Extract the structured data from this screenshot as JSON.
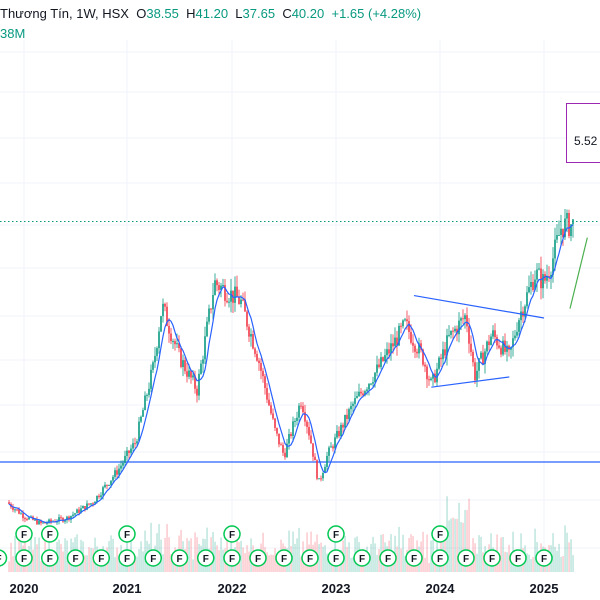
{
  "legend": {
    "symbol": "Thương Tín, 1W, HSX",
    "o_label": "O",
    "o_value": "38.55",
    "h_label": "H",
    "h_value": "41.20",
    "l_label": "L",
    "l_value": "37.65",
    "c_label": "C",
    "c_value": "40.20",
    "change": "+1.65 (+4.28%)",
    "volume_fragment": "38M"
  },
  "colors": {
    "up": "#089981",
    "down": "#f23645",
    "ma": "#2962ff",
    "trendline": "#2962ff",
    "support": "#2962ff",
    "projection": "#4caf50",
    "current_price_line": "#089981",
    "measure_box": "#9c27b0",
    "event_marker": "#00c853"
  },
  "measure_label": "5.52",
  "chart_data": {
    "type": "candlestick",
    "interval": "1W",
    "title": "Thương Tín, 1W, HSX",
    "xlabel": "",
    "ylabel": "",
    "x_tick_labels": [
      "2020",
      "2021",
      "2022",
      "2023",
      "2024",
      "2025"
    ],
    "last_bar": {
      "open": 38.55,
      "high": 41.2,
      "low": 37.65,
      "close": 40.2,
      "change": 1.65,
      "change_pct": 4.28
    },
    "ylim": [
      8,
      50
    ],
    "support_level": 14.8,
    "current_price": 40.2,
    "anchors": [
      [
        "2019-11",
        10.5
      ],
      [
        "2020-01",
        9.0
      ],
      [
        "2020-03",
        8.2
      ],
      [
        "2020-06",
        8.8
      ],
      [
        "2020-09",
        10.5
      ],
      [
        "2020-12",
        14.0
      ],
      [
        "2021-02",
        17.0
      ],
      [
        "2021-04",
        25.0
      ],
      [
        "2021-05",
        31.5
      ],
      [
        "2021-07",
        26.0
      ],
      [
        "2021-09",
        22.5
      ],
      [
        "2021-11",
        34.0
      ],
      [
        "2022-02",
        32.0
      ],
      [
        "2022-04",
        26.0
      ],
      [
        "2022-06",
        18.0
      ],
      [
        "2022-07",
        15.5
      ],
      [
        "2022-09",
        21.5
      ],
      [
        "2022-10",
        17.5
      ],
      [
        "2022-11",
        12.5
      ],
      [
        "2022-12",
        15.5
      ],
      [
        "2023-03",
        21.0
      ],
      [
        "2023-06",
        25.0
      ],
      [
        "2023-09",
        29.5
      ],
      [
        "2023-11",
        26.0
      ],
      [
        "2023-12",
        23.0
      ],
      [
        "2024-02",
        28.0
      ],
      [
        "2024-04",
        30.5
      ],
      [
        "2024-05",
        24.0
      ],
      [
        "2024-07",
        28.5
      ],
      [
        "2024-09",
        26.0
      ],
      [
        "2024-10",
        30.0
      ],
      [
        "2024-12",
        35.0
      ],
      [
        "2025-01",
        34.0
      ],
      [
        "2025-02",
        36.5
      ],
      [
        "2025-03",
        40.0
      ],
      [
        "2025-04",
        40.2
      ]
    ],
    "trendlines": [
      {
        "kind": "upper",
        "from": [
          "2023-10",
          32.6
        ],
        "to": [
          "2025-01",
          30.2
        ]
      },
      {
        "kind": "lower",
        "from": [
          "2023-12",
          22.8
        ],
        "to": [
          "2024-09",
          23.9
        ]
      }
    ],
    "projection": {
      "from": [
        "2025-04",
        31.2
      ],
      "to": [
        "2025-06",
        38.8
      ]
    },
    "event_marker_label": "F",
    "event_markers_row1": [
      "2020-01",
      "2020-04",
      "2021-01",
      "2022-01",
      "2023-01",
      "2024-01"
    ],
    "event_markers_row2": [
      "2019-10",
      "2020-01",
      "2020-04",
      "2020-07",
      "2020-10",
      "2021-01",
      "2021-04",
      "2021-07",
      "2021-10",
      "2022-01",
      "2022-04",
      "2022-07",
      "2022-10",
      "2023-01",
      "2023-04",
      "2023-07",
      "2023-10",
      "2024-01",
      "2024-04",
      "2024-07",
      "2024-10",
      "2025-01"
    ]
  }
}
